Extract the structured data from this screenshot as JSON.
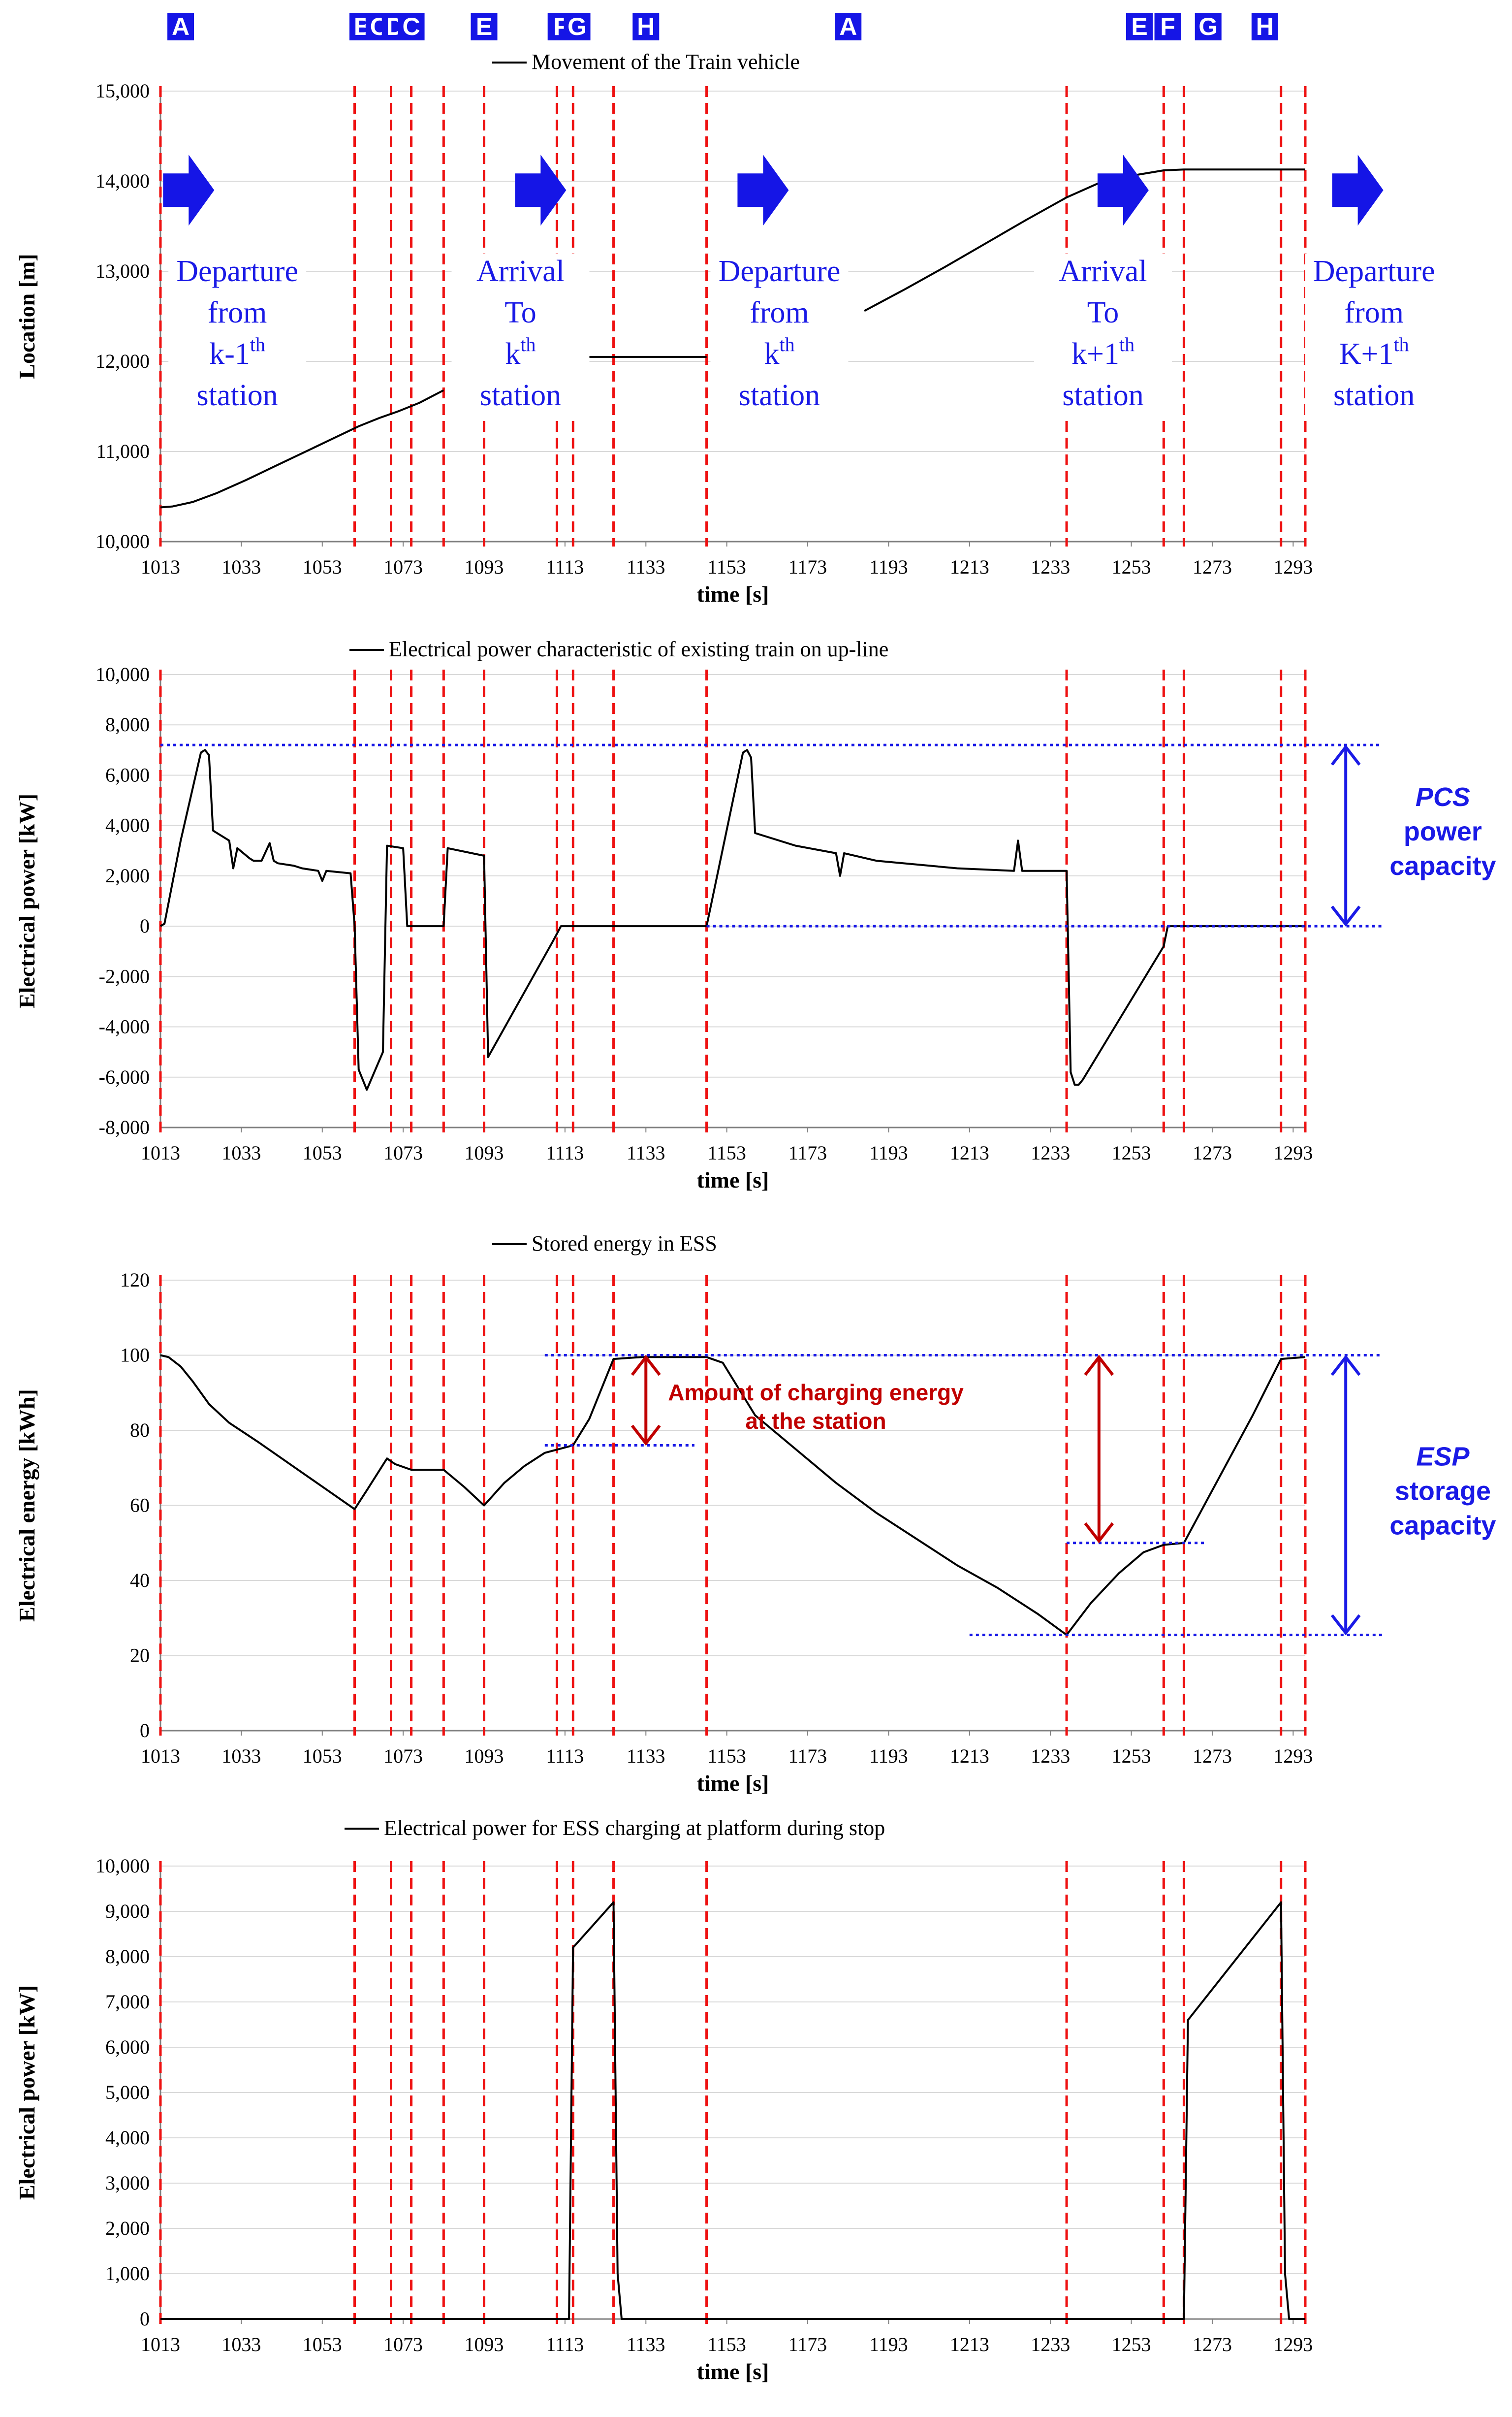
{
  "colors": {
    "phase_line": "#ee1111",
    "label_bg": "#1515e6",
    "label_text": "#ffffff",
    "annot_blue": "#1a1ae6",
    "annot_red": "#c00000",
    "grid": "#d9d9d9",
    "axis": "#808080",
    "series": "#000000"
  },
  "phase_labels": [
    {
      "letter": "A",
      "t": 1018
    },
    {
      "letter": "B",
      "t": 1063
    },
    {
      "letter": "C",
      "t": 1067
    },
    {
      "letter": "D",
      "t": 1071
    },
    {
      "letter": "C",
      "t": 1075
    },
    {
      "letter": "E",
      "t": 1093
    },
    {
      "letter": "F",
      "t": 1112
    },
    {
      "letter": "G",
      "t": 1116
    },
    {
      "letter": "H",
      "t": 1133
    },
    {
      "letter": "A",
      "t": 1183
    },
    {
      "letter": "E",
      "t": 1255
    },
    {
      "letter": "F",
      "t": 1262
    },
    {
      "letter": "G",
      "t": 1272
    },
    {
      "letter": "H",
      "t": 1286
    }
  ],
  "phase_boundaries": [
    1013,
    1061,
    1070,
    1075,
    1083,
    1093,
    1111,
    1115,
    1125,
    1148,
    1237,
    1261,
    1266,
    1290,
    1296
  ],
  "chart_data": [
    {
      "type": "line",
      "title": "",
      "legend": "Movement of the Train vehicle",
      "xlabel": "time [s]",
      "ylabel": "Location [m]",
      "xlim": [
        1013,
        1296
      ],
      "xticks": [
        1013,
        1033,
        1053,
        1073,
        1093,
        1113,
        1133,
        1153,
        1173,
        1193,
        1213,
        1233,
        1253,
        1273,
        1293
      ],
      "ylim": [
        10000,
        15000
      ],
      "yticks": [
        10000,
        11000,
        12000,
        13000,
        14000,
        15000
      ],
      "ytick_labels": [
        "10,000",
        "11,000",
        "12,000",
        "13,000",
        "14,000",
        "15,000"
      ],
      "segments": [
        {
          "x": [
            1013,
            1016,
            1021,
            1027,
            1034,
            1041,
            1048,
            1055,
            1062,
            1067,
            1072,
            1077,
            1083
          ],
          "y": [
            10380,
            10390,
            10440,
            10540,
            10680,
            10830,
            10980,
            11130,
            11280,
            11370,
            11450,
            11540,
            11680
          ]
        },
        {
          "x": [
            1113,
            1122,
            1130,
            1140,
            1148
          ],
          "y": [
            12050,
            12050,
            12050,
            12050,
            12050
          ]
        },
        {
          "x": [
            1187,
            1197,
            1207,
            1217,
            1227,
            1237,
            1245,
            1253,
            1261,
            1266,
            1275,
            1285,
            1296
          ],
          "y": [
            12560,
            12800,
            13050,
            13310,
            13570,
            13820,
            13980,
            14060,
            14120,
            14130,
            14130,
            14130,
            14130
          ]
        }
      ],
      "annotations": [
        {
          "line1": "Departure",
          "line2": "from",
          "line3_pre": "k-1",
          "line3_sup": "th",
          "line4": "station",
          "t": 1032
        },
        {
          "line1": "Arrival",
          "line2": "To",
          "line3_pre": "k",
          "line3_sup": "th",
          "line4": "station",
          "t": 1102
        },
        {
          "line1": "Departure",
          "line2": "from",
          "line3_pre": "k",
          "line3_sup": "th",
          "line4": "station",
          "t": 1166
        },
        {
          "line1": "Arrival",
          "line2": "To",
          "line3_pre": "k+1",
          "line3_sup": "th",
          "line4": "station",
          "t": 1246
        },
        {
          "line1": "Departure",
          "line2": "from",
          "line3_pre": "K+1",
          "line3_sup": "th",
          "line4": "station",
          "t": 1313
        }
      ],
      "arrows_at": [
        1019,
        1106,
        1161,
        1250,
        1308
      ]
    },
    {
      "type": "line",
      "title": "",
      "legend": "Electrical power characteristic of existing train on up-line",
      "xlabel": "time [s]",
      "ylabel": "Electrical power [kW]",
      "xlim": [
        1013,
        1296
      ],
      "xticks": [
        1013,
        1033,
        1053,
        1073,
        1093,
        1113,
        1133,
        1153,
        1173,
        1193,
        1213,
        1233,
        1253,
        1273,
        1293
      ],
      "ylim": [
        -8000,
        10000
      ],
      "yticks": [
        -8000,
        -6000,
        -4000,
        -2000,
        0,
        2000,
        4000,
        6000,
        8000,
        10000
      ],
      "ytick_labels": [
        "-8,000",
        "-6,000",
        "-4,000",
        "-2,000",
        "0",
        "2,000",
        "4,000",
        "6,000",
        "8,000",
        "10,000"
      ],
      "segments": [
        {
          "x": [
            1013,
            1014,
            1018,
            1023,
            1024,
            1025,
            1026,
            1030,
            1031,
            1032,
            1035,
            1036,
            1038,
            1040,
            1041,
            1042,
            1046,
            1048,
            1052,
            1053,
            1054,
            1060,
            1061,
            1062,
            1064,
            1068,
            1069,
            1073,
            1074,
            1083,
            1084,
            1093,
            1094,
            1110,
            1112,
            1148
          ],
          "y": [
            0,
            100,
            3400,
            6900,
            7000,
            6800,
            3800,
            3400,
            2300,
            3100,
            2700,
            2600,
            2600,
            3300,
            2600,
            2500,
            2400,
            2300,
            2200,
            1800,
            2200,
            2100,
            0,
            -5700,
            -6500,
            -5000,
            3200,
            3100,
            0,
            0,
            3100,
            2800,
            -5200,
            -600,
            0,
            0
          ]
        },
        {
          "x": [
            1148,
            1157,
            1158,
            1159,
            1160,
            1170,
            1180,
            1181,
            1182,
            1190,
            1210,
            1224,
            1225,
            1226,
            1232,
            1237,
            1238,
            1239,
            1240,
            1241,
            1261,
            1262,
            1296
          ],
          "y": [
            0,
            6900,
            7000,
            6700,
            3700,
            3200,
            2900,
            2000,
            2900,
            2600,
            2300,
            2200,
            3400,
            2200,
            2200,
            2200,
            -5800,
            -6300,
            -6300,
            -6100,
            -800,
            0,
            0
          ]
        }
      ],
      "guides": [
        {
          "y": 7200,
          "t_from": 1013,
          "t_to": 1315
        },
        {
          "y": 0,
          "t_from": 1148,
          "t_to": 1315
        }
      ],
      "capacity_arrow": {
        "t": 1306,
        "y_from": 7200,
        "y_to": 0,
        "line1_ital": "PCS",
        "line2": "power",
        "line3": "capacity",
        "t_text": 1330
      }
    },
    {
      "type": "line",
      "title": "",
      "legend": "Stored energy in ESS",
      "xlabel": "time [s]",
      "ylabel": "Electrical energy [kWh]",
      "xlim": [
        1013,
        1296
      ],
      "xticks": [
        1013,
        1033,
        1053,
        1073,
        1093,
        1113,
        1133,
        1153,
        1173,
        1193,
        1213,
        1233,
        1253,
        1273,
        1293
      ],
      "ylim": [
        0,
        120
      ],
      "yticks": [
        0,
        20,
        40,
        60,
        80,
        100,
        120
      ],
      "ytick_labels": [
        "0",
        "20",
        "40",
        "60",
        "80",
        "100",
        "120"
      ],
      "segments": [
        {
          "x": [
            1013,
            1015,
            1018,
            1021,
            1025,
            1030,
            1037,
            1045,
            1053,
            1061,
            1064,
            1069,
            1071,
            1075,
            1083,
            1088,
            1093,
            1098,
            1103,
            1108,
            1115,
            1119,
            1125,
            1132,
            1141,
            1148,
            1152,
            1160,
            1170,
            1180,
            1190,
            1200,
            1210,
            1220,
            1230,
            1237,
            1243,
            1250,
            1256,
            1261,
            1266,
            1270,
            1276,
            1283,
            1290,
            1296
          ],
          "y": [
            100,
            99.5,
            97,
            93,
            87,
            82,
            77,
            71,
            65,
            59,
            64,
            72.5,
            71,
            69.5,
            69.5,
            65,
            60,
            66,
            70.5,
            74,
            76,
            83,
            99,
            99.5,
            99.5,
            99.5,
            98,
            84,
            75,
            66,
            58,
            51,
            44,
            38,
            31,
            25.5,
            34,
            42,
            47.5,
            49.5,
            50,
            58,
            70,
            84,
            99,
            99.5
          ]
        }
      ],
      "guides": [
        {
          "y": 76,
          "t_from": 1108,
          "t_to": 1145
        },
        {
          "y": 100,
          "t_from": 1108,
          "t_to": 1315
        },
        {
          "y": 50,
          "t_from": 1237,
          "t_to": 1271
        },
        {
          "y": 25.5,
          "t_from": 1213,
          "t_to": 1315
        }
      ],
      "charge_arrows": [
        {
          "t": 1133,
          "y_from": 76,
          "y_to": 100
        },
        {
          "t": 1245,
          "y_from": 50,
          "y_to": 100
        }
      ],
      "charge_text": {
        "line1": "Amount of charging energy",
        "line2": "at the station",
        "t": 1175
      },
      "capacity_arrow": {
        "t": 1306,
        "y_from": 100,
        "y_to": 25.5,
        "line1_ital": "ESP",
        "line2": "storage",
        "line3": "capacity",
        "t_text": 1330
      }
    },
    {
      "type": "line",
      "title": "",
      "legend": "Electrical power for ESS charging at platform during stop",
      "xlabel": "time [s]",
      "ylabel": "Electrical power [kW]",
      "xlim": [
        1013,
        1296
      ],
      "xticks": [
        1013,
        1033,
        1053,
        1073,
        1093,
        1113,
        1133,
        1153,
        1173,
        1193,
        1213,
        1233,
        1253,
        1273,
        1293
      ],
      "ylim": [
        0,
        10000
      ],
      "yticks": [
        0,
        1000,
        2000,
        3000,
        4000,
        5000,
        6000,
        7000,
        8000,
        9000,
        10000
      ],
      "ytick_labels": [
        "0",
        "1,000",
        "2,000",
        "3,000",
        "4,000",
        "5,000",
        "6,000",
        "7,000",
        "8,000",
        "9,000",
        "10,000"
      ],
      "segments": [
        {
          "x": [
            1013,
            1114,
            1115,
            1125,
            1126,
            1127,
            1266,
            1267,
            1290,
            1291,
            1292,
            1296
          ],
          "y": [
            0,
            0,
            8200,
            9200,
            1000,
            0,
            0,
            6600,
            9200,
            1000,
            0,
            0
          ]
        }
      ]
    }
  ]
}
